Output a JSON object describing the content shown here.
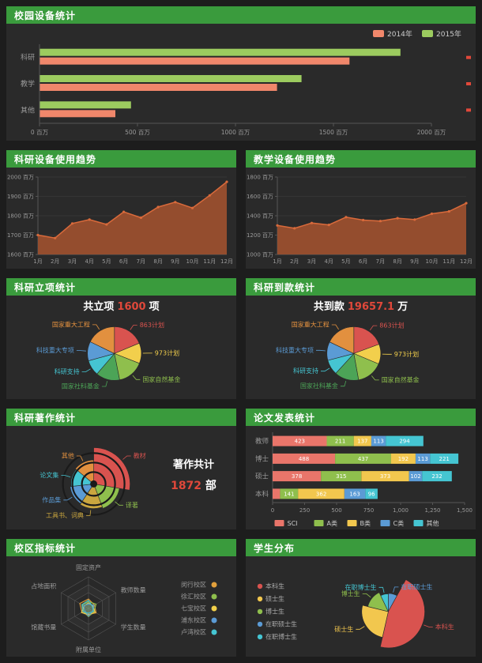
{
  "colors": {
    "page_bg": "#1d1d1d",
    "panel_bg": "#2a2a2a",
    "header_green": "#3a9b3d",
    "red_accent": "#e0483a",
    "axis_text": "#9a9a9a",
    "axis_line": "#555555"
  },
  "chart_data": [
    {
      "id": "campus-equipment",
      "type": "bar",
      "title": "校园设备统计",
      "orientation": "horizontal",
      "unit": "百万",
      "xticks": [
        0,
        500,
        1000,
        1500,
        2000
      ],
      "xlim": [
        0,
        2000
      ],
      "categories": [
        "科研",
        "教学",
        "其他"
      ],
      "legend": [
        {
          "name": "2014年",
          "color": "#f0876b"
        },
        {
          "name": "2015年",
          "color": "#9ccb5f"
        }
      ],
      "series": [
        {
          "name": "2015年",
          "color": "#9ccb5f",
          "values": [
            1840,
            1335,
            465
          ]
        },
        {
          "name": "2014年",
          "color": "#f0876b",
          "values": [
            1580,
            1210,
            385
          ]
        }
      ],
      "edge_marks": true
    },
    {
      "id": "research-trend",
      "type": "area",
      "title": "科研设备使用趋势",
      "unit": "百万",
      "x": [
        "1月",
        "2月",
        "3月",
        "4月",
        "5月",
        "6月",
        "7月",
        "8月",
        "9月",
        "10月",
        "11月",
        "12月"
      ],
      "values": [
        1700,
        1685,
        1760,
        1780,
        1755,
        1820,
        1790,
        1845,
        1870,
        1840,
        1905,
        1975
      ],
      "ylim": [
        1600,
        2000
      ],
      "yticks": [
        1600,
        1700,
        1800,
        1900,
        2000
      ],
      "line_color": "#d96a3b",
      "area_color": "#9a4f2e"
    },
    {
      "id": "teaching-trend",
      "type": "area",
      "title": "教学设备使用趋势",
      "unit": "百万",
      "x": [
        "1月",
        "2月",
        "3月",
        "4月",
        "5月",
        "6月",
        "7月",
        "8月",
        "9月",
        "10月",
        "11月",
        "12月"
      ],
      "values": [
        1300,
        1270,
        1325,
        1305,
        1385,
        1355,
        1345,
        1375,
        1360,
        1420,
        1445,
        1530
      ],
      "ylim": [
        1000,
        1800
      ],
      "yticks": [
        1000,
        1200,
        1400,
        1600,
        1800
      ],
      "line_color": "#d96a3b",
      "area_color": "#9a4f2e"
    },
    {
      "id": "projects",
      "type": "pie",
      "title": "科研立项统计",
      "summary": {
        "prefix": "共立项",
        "value": "1600",
        "suffix": "项"
      },
      "cx": 0.47,
      "cy": 0.56,
      "r": 34,
      "slices": [
        {
          "name": "863计划",
          "value": 300,
          "color": "#d9534f"
        },
        {
          "name": "973计划",
          "value": 195,
          "color": "#f2cf4c"
        },
        {
          "name": "国家自然基金",
          "value": 255,
          "color": "#8fbf4d"
        },
        {
          "name": "国家社科基金",
          "value": 230,
          "color": "#4ca457"
        },
        {
          "name": "科研支持",
          "value": 150,
          "color": "#45c5d2"
        },
        {
          "name": "科技重大专项",
          "value": 185,
          "color": "#5b9bd5"
        },
        {
          "name": "国家重大工程",
          "value": 285,
          "color": "#e2903f"
        }
      ]
    },
    {
      "id": "funding",
      "type": "pie",
      "title": "科研到款统计",
      "summary": {
        "prefix": "共到款",
        "value": "19657.1",
        "suffix": "万"
      },
      "cx": 0.47,
      "cy": 0.56,
      "r": 34,
      "slices": [
        {
          "name": "863计划",
          "value": 3805.1,
          "color": "#d9534f"
        },
        {
          "name": "973计划",
          "value": 2350,
          "color": "#f2cf4c"
        },
        {
          "name": "国家自然基金",
          "value": 3120,
          "color": "#8fbf4d"
        },
        {
          "name": "国家社科基金",
          "value": 2862,
          "color": "#4ca457"
        },
        {
          "name": "科研支持",
          "value": 1800,
          "color": "#45c5d2"
        },
        {
          "name": "科技重大专项",
          "value": 2200,
          "color": "#5b9bd5"
        },
        {
          "name": "国家重大工程",
          "value": 3520,
          "color": "#e2903f"
        }
      ]
    },
    {
      "id": "works",
      "type": "pie",
      "rose": true,
      "title": "科研著作统计",
      "summary": {
        "line1": "著作共计",
        "value": "1872",
        "suffix": "部"
      },
      "cx": 0.38,
      "cy": 0.56,
      "rmin": 14,
      "rmax": 46,
      "rings": [
        15,
        27,
        39
      ],
      "slices": [
        {
          "name": "教材",
          "value": 520,
          "color": "#d9534f"
        },
        {
          "name": "译著",
          "value": 310,
          "color": "#8fbf4d"
        },
        {
          "name": "工具书、词典",
          "value": 280,
          "color": "#caa63f"
        },
        {
          "name": "作品集",
          "value": 260,
          "color": "#5b9bd5"
        },
        {
          "name": "论文集",
          "value": 240,
          "color": "#45c5d2"
        },
        {
          "name": "其他",
          "value": 262,
          "color": "#e2903f"
        }
      ]
    },
    {
      "id": "papers",
      "type": "stacked_bar",
      "title": "论文发表统计",
      "categories": [
        "教师",
        "博士",
        "硕士",
        "本科"
      ],
      "xticks": [
        "0",
        "250",
        "500",
        "750",
        "1,000",
        "1,250",
        "1,500"
      ],
      "xlim": [
        0,
        1500
      ],
      "series": [
        {
          "name": "SCI",
          "color": "#e9756a",
          "values": [
            423,
            488,
            378,
            58
          ]
        },
        {
          "name": "A类",
          "color": "#8fbf4d",
          "values": [
            211,
            437,
            315,
            141
          ]
        },
        {
          "name": "B类",
          "color": "#f2c74e",
          "values": [
            137,
            192,
            373,
            362
          ]
        },
        {
          "name": "C类",
          "color": "#5b9bd5",
          "values": [
            113,
            113,
            102,
            163
          ]
        },
        {
          "name": "其他",
          "color": "#45c5d2",
          "values": [
            294,
            221,
            232,
            96
          ]
        }
      ]
    },
    {
      "id": "campus-metrics",
      "type": "radar",
      "title": "校区指标统计",
      "indicators": [
        "固定资产",
        "教师数量",
        "学生数量",
        "附属单位",
        "馆藏书量",
        "占地面积"
      ],
      "max": 100,
      "series": [
        {
          "name": "闵行校区",
          "color": "#e2a03c",
          "values": [
            30,
            22,
            28,
            18,
            24,
            32
          ]
        },
        {
          "name": "徐汇校区",
          "color": "#8fbf4d",
          "values": [
            22,
            28,
            20,
            26,
            18,
            22
          ]
        },
        {
          "name": "七宝校区",
          "color": "#f2d04a",
          "values": [
            18,
            16,
            24,
            20,
            26,
            16
          ]
        },
        {
          "name": "浦东校区",
          "color": "#5b9bd5",
          "values": [
            14,
            20,
            16,
            24,
            14,
            18
          ]
        },
        {
          "name": "卢湾校区",
          "color": "#45c5d2",
          "values": [
            26,
            14,
            18,
            15,
            20,
            24
          ]
        }
      ]
    },
    {
      "id": "students",
      "type": "pie",
      "rose": true,
      "title": "学生分布",
      "cx": 0.62,
      "cy": 0.55,
      "rmin": 18,
      "rmax": 46,
      "legend_side": "left",
      "legend": [
        "本科生",
        "硕士生",
        "博士生",
        "在职硕士生",
        "在职博士生"
      ],
      "slices": [
        {
          "name": "在职硕士生",
          "value": 2600,
          "color": "#5b9bd5"
        },
        {
          "name": "本科生",
          "value": 14800,
          "color": "#d9534f"
        },
        {
          "name": "硕士生",
          "value": 8200,
          "color": "#f2c74e"
        },
        {
          "name": "博士生",
          "value": 4600,
          "color": "#8fbf4d"
        },
        {
          "name": "在职博士生",
          "value": 2300,
          "color": "#45c5d2"
        }
      ]
    }
  ]
}
